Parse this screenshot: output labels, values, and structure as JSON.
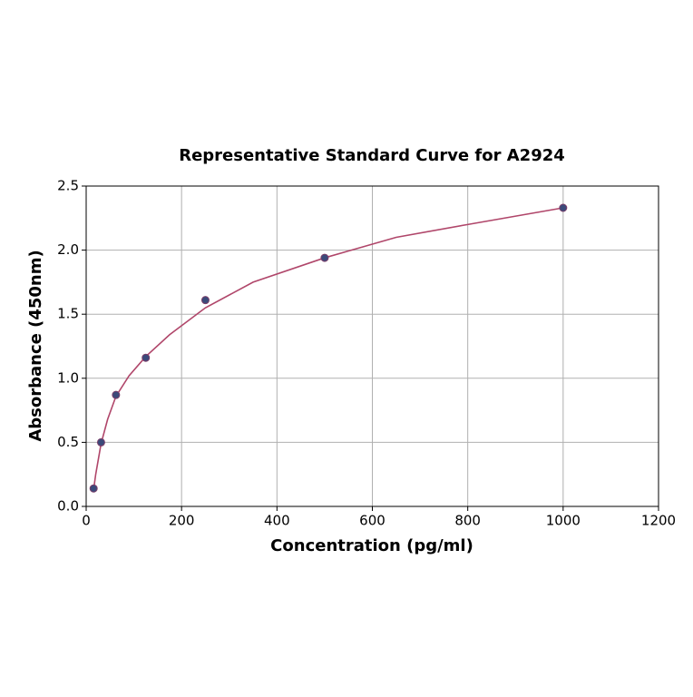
{
  "chart_data": {
    "type": "scatter",
    "title": "Representative Standard Curve for A2924",
    "x_label": "Concentration (pg/ml)",
    "y_label": "Absorbance (450nm)",
    "xlim": [
      0,
      1200
    ],
    "ylim": [
      0,
      2.5
    ],
    "xticks": [
      0,
      200,
      400,
      600,
      800,
      1000,
      1200
    ],
    "yticks": [
      {
        "value": 0,
        "label": "0.0"
      },
      0.5,
      {
        "value": 1,
        "label": "1.0"
      },
      1.5,
      {
        "value": 2,
        "label": "2.0"
      },
      2.5
    ],
    "grid": true,
    "series": [
      {
        "type": "line",
        "color": "#b0466a",
        "x": [
          15.6,
          20,
          31.25,
          45,
          62.5,
          90,
          125,
          175,
          250,
          350,
          500,
          650,
          800,
          1000
        ],
        "values": [
          0.13,
          0.25,
          0.49,
          0.68,
          0.86,
          1.02,
          1.17,
          1.34,
          1.55,
          1.75,
          1.94,
          2.1,
          2.2,
          2.33
        ]
      },
      {
        "type": "scatter",
        "color": "#3b4a7a",
        "x": [
          15.6,
          31.25,
          62.5,
          125,
          250,
          500,
          1000
        ],
        "values": [
          0.14,
          0.5,
          0.87,
          1.16,
          1.61,
          1.94,
          2.33
        ]
      }
    ]
  }
}
